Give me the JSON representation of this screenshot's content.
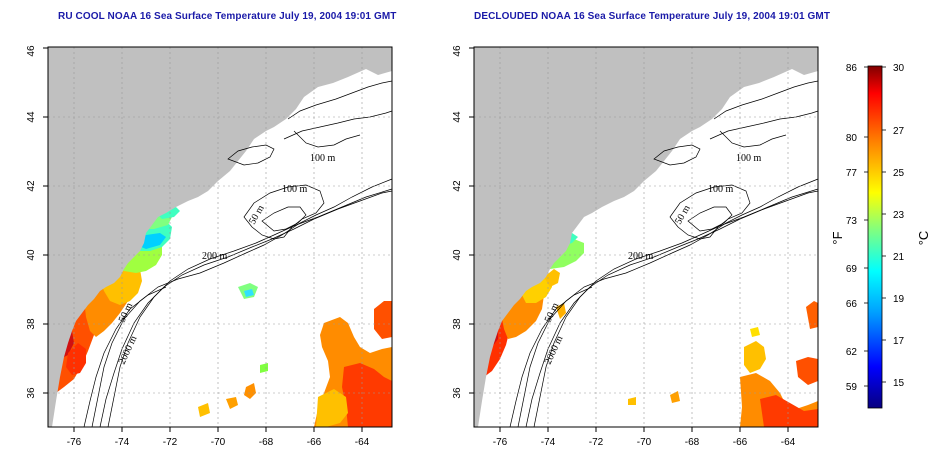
{
  "panels": [
    {
      "title": "RU COOL NOAA 16 Sea Surface Temperature July 19, 2004 19:01 GMT"
    },
    {
      "title": "DECLOUDED NOAA 16 Sea Surface Temperature July 19, 2004 19:01 GMT"
    }
  ],
  "map": {
    "lon_ticks": [
      "-76",
      "-74",
      "-72",
      "-70",
      "-68",
      "-66",
      "-64"
    ],
    "lat_ticks": [
      "36",
      "38",
      "40",
      "42",
      "44",
      "46"
    ],
    "contour_labels": [
      "100 m",
      "100 m",
      "50 m",
      "200 m",
      "50 m",
      "2000 m"
    ],
    "land_color": "#c0c0c0",
    "sea_color": "#ffffff",
    "grid": true
  },
  "colorbar": {
    "fahrenheit_ticks": [
      "86",
      "80",
      "77",
      "73",
      "69",
      "66",
      "62",
      "59"
    ],
    "celsius_ticks": [
      "30",
      "27",
      "25",
      "23",
      "21",
      "19",
      "17",
      "15"
    ],
    "fahrenheit_unit": "°F",
    "celsius_unit": "°C",
    "colors": [
      "#080080",
      "#0000ff",
      "#00a0ff",
      "#00ffff",
      "#80ff80",
      "#ffff00",
      "#ff8000",
      "#ff0000",
      "#800000"
    ]
  }
}
